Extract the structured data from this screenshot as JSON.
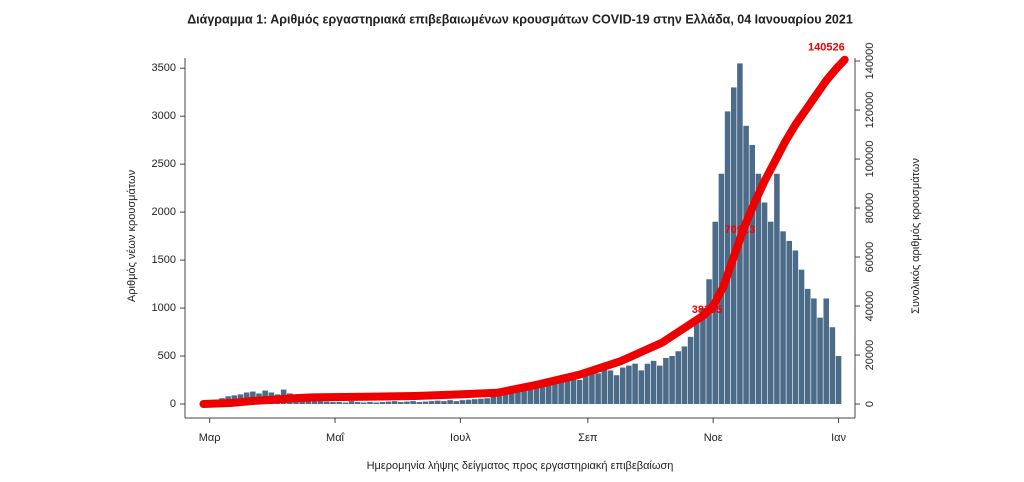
{
  "chart_data": {
    "type": "bar",
    "title": "Διάγραμμα 1: Αριθμός εργαστηριακά επιβεβαιωμένων κρουσμάτων COVID-19 στην Ελλάδα, 04 Ιανουαρίου 2021",
    "x_label": "Ημερομηνία λήψης δείγματος προς εργαστηριακή επιβεβαίωση",
    "y_label": "Αριθμός νέων κρουσμάτων",
    "y2_label": "Συνολικός αριθμός κρουσμάτων",
    "xlim": [
      -12,
      314
    ],
    "xticks": [
      {
        "value": 0,
        "label": "Μαρ"
      },
      {
        "value": 61,
        "label": "Μαΐ"
      },
      {
        "value": 122,
        "label": "Ιουλ"
      },
      {
        "value": 184,
        "label": "Σεπ"
      },
      {
        "value": 245,
        "label": "Νοε"
      },
      {
        "value": 306,
        "label": "Ιαν"
      }
    ],
    "ylim": [
      -146,
      3690
    ],
    "yticks": [
      0,
      500,
      1000,
      1500,
      2000,
      2500,
      3000,
      3500
    ],
    "y2lim": [
      -5700,
      144500
    ],
    "y2ticks": [
      0,
      20000,
      40000,
      60000,
      80000,
      100000,
      120000,
      140000
    ],
    "series": [
      {
        "color": "#4b6b89",
        "x": [
          -3,
          0,
          3,
          6,
          9,
          12,
          15,
          18,
          21,
          24,
          27,
          30,
          33,
          36,
          39,
          42,
          45,
          48,
          51,
          54,
          57,
          60,
          63,
          66,
          69,
          72,
          75,
          78,
          81,
          84,
          87,
          90,
          93,
          96,
          99,
          102,
          105,
          108,
          111,
          114,
          117,
          120,
          123,
          126,
          129,
          132,
          135,
          138,
          141,
          144,
          147,
          150,
          153,
          156,
          159,
          162,
          165,
          168,
          171,
          174,
          177,
          180,
          183,
          186,
          189,
          192,
          195,
          198,
          201,
          204,
          207,
          210,
          213,
          216,
          219,
          222,
          225,
          228,
          231,
          234,
          237,
          240,
          243,
          246,
          249,
          252,
          255,
          258,
          261,
          264,
          267,
          270,
          273,
          276,
          279,
          282,
          285,
          288,
          291,
          294,
          297,
          300,
          303,
          306
        ],
        "values": [
          5,
          10,
          30,
          60,
          80,
          90,
          100,
          120,
          130,
          110,
          140,
          120,
          100,
          150,
          110,
          90,
          70,
          60,
          40,
          30,
          25,
          20,
          20,
          15,
          30,
          20,
          15,
          20,
          15,
          20,
          25,
          30,
          20,
          25,
          30,
          20,
          25,
          30,
          35,
          30,
          40,
          30,
          40,
          45,
          50,
          55,
          60,
          80,
          100,
          120,
          150,
          180,
          200,
          220,
          230,
          250,
          200,
          280,
          250,
          300,
          280,
          250,
          300,
          350,
          320,
          400,
          350,
          300,
          380,
          400,
          420,
          350,
          420,
          450,
          400,
          480,
          500,
          550,
          600,
          700,
          850,
          1000,
          1300,
          1900,
          2400,
          3050,
          3300,
          3550,
          2900,
          2700,
          2400,
          2100,
          1900,
          2400,
          1800,
          1700,
          1600,
          1400,
          1200,
          1100,
          900,
          1100,
          800,
          500
        ]
      },
      {
        "type": "line",
        "axis": "y2",
        "color": "#ee0000",
        "x": [
          -3,
          10,
          20,
          30,
          40,
          50,
          60,
          80,
          100,
          120,
          140,
          160,
          180,
          200,
          220,
          240,
          245,
          250,
          255,
          260,
          265,
          270,
          275,
          280,
          285,
          290,
          295,
          300,
          305,
          309
        ],
        "values": [
          5,
          400,
          1200,
          1700,
          2300,
          2700,
          2800,
          3000,
          3300,
          3900,
          4600,
          8000,
          12000,
          17500,
          25000,
          36000,
          40000,
          48000,
          60000,
          72000,
          82000,
          91000,
          99000,
          107000,
          114000,
          120000,
          126000,
          132000,
          137000,
          140526
        ]
      }
    ],
    "annotations": [
      {
        "text": "38395",
        "x": 242,
        "y": 38395
      },
      {
        "text": "70923",
        "x": 258,
        "y": 70923
      },
      {
        "text": "140526",
        "x": 309,
        "y": 140526
      }
    ]
  }
}
